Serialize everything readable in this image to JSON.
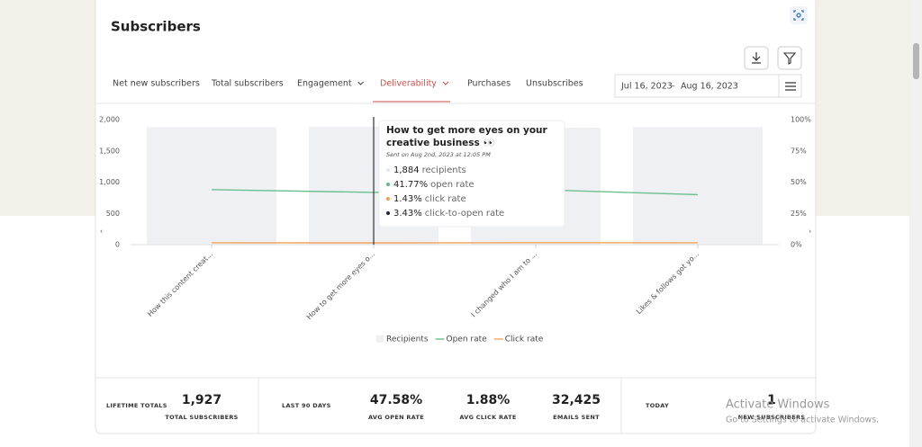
{
  "header": {
    "title": "Subscribers"
  },
  "tabs": [
    "Net new subscribers",
    "Total subscribers",
    "Engagement",
    "Deliverability",
    "Purchases",
    "Unsubscribes"
  ],
  "date_range": {
    "start": "Jul 16, 2023",
    "separator": "–",
    "end": "Aug 16, 2023"
  },
  "chart_data": {
    "type": "bar",
    "categories": [
      "How this content creat...",
      "How to get more eyes o...",
      "I changed who I am to ...",
      "Likes & follows got yo..."
    ],
    "series": [
      {
        "name": "Recipients",
        "type": "bar",
        "color": "#eef0f4",
        "values": [
          1880,
          1884,
          1870,
          1880
        ]
      },
      {
        "name": "Open rate",
        "type": "line",
        "axis": "y2",
        "color": "#6cbf8e",
        "values": [
          44,
          41.77,
          44,
          40
        ]
      },
      {
        "name": "Click rate",
        "type": "line",
        "axis": "y2",
        "color": "#f4a35a",
        "values": [
          1.5,
          1.43,
          1.6,
          1.5
        ]
      }
    ],
    "ylim": [
      0,
      2000
    ],
    "yticks": [
      0,
      500,
      {
        "value": 1000,
        "label": "1,000"
      },
      {
        "value": 1500,
        "label": "1,500"
      },
      {
        "value": 2000,
        "label": "2,000"
      }
    ],
    "y2lim": [
      0,
      100
    ],
    "y2ticks": [
      {
        "value": 0,
        "label": "0%"
      },
      {
        "value": 25,
        "label": "25%"
      },
      {
        "value": 50,
        "label": "50%"
      },
      {
        "value": 75,
        "label": "75%"
      },
      {
        "value": 100,
        "label": "100%"
      }
    ],
    "grid": false,
    "legend": "bottom"
  },
  "tooltip": {
    "title": "How to get more eyes on your creative business 👀",
    "subtitle": "Sent on Aug 2nd, 2023 at 12:05 PM",
    "rows": [
      {
        "value": "1,884",
        "label": "recipients",
        "color": "#e6e8ee"
      },
      {
        "value": "41.77%",
        "label": "open rate",
        "color": "#5cb88a"
      },
      {
        "value": "1.43%",
        "label": "click rate",
        "color": "#f0a04b"
      },
      {
        "value": "3.43%",
        "label": "click-to-open rate",
        "color": "#1f2540"
      }
    ]
  },
  "stats": {
    "lifetime": {
      "heading": "LIFETIME TOTALS",
      "value": "1,927",
      "caption": "TOTAL SUBSCRIBERS"
    },
    "last90": {
      "heading": "LAST 90 DAYS",
      "items": [
        {
          "value": "47.58%",
          "caption": "AVG OPEN RATE"
        },
        {
          "value": "1.88%",
          "caption": "AVG CLICK RATE"
        },
        {
          "value": "32,425",
          "caption": "EMAILS SENT"
        }
      ]
    },
    "today": {
      "heading": "TODAY",
      "value": "1",
      "caption": "NEW SUBSCRIBERS"
    }
  },
  "watermark": {
    "title": "Activate Windows",
    "text": "Go to Settings to activate Windows."
  }
}
